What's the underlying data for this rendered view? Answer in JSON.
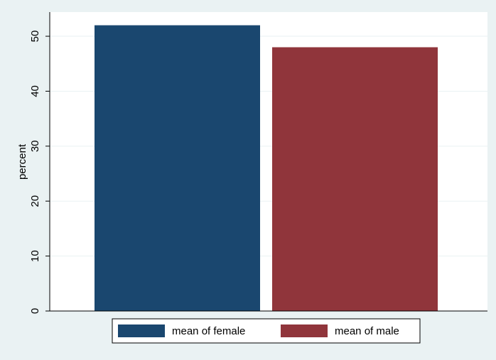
{
  "chart_data": {
    "type": "bar",
    "y_label": "percent",
    "series": [
      {
        "name": "mean of female",
        "color": "#1a476f",
        "values": [
          52
        ]
      },
      {
        "name": "mean of male",
        "color": "#90353b",
        "values": [
          48
        ]
      }
    ],
    "ylim": [
      0,
      54.4
    ],
    "yticks": [
      0,
      10,
      20,
      30,
      40,
      50
    ],
    "grid": true
  }
}
